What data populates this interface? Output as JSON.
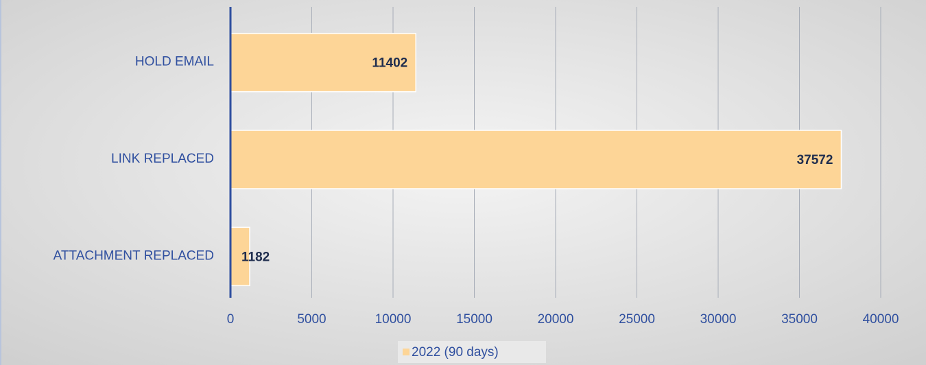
{
  "chart_data": {
    "type": "bar",
    "orientation": "horizontal",
    "categories": [
      "HOLD EMAIL",
      "LINK REPLACED",
      "ATTACHMENT REPLACED"
    ],
    "series": [
      {
        "name": "2022 (90 days)",
        "color": "#fdd597",
        "values": [
          11402,
          37572,
          1182
        ]
      }
    ],
    "xlim": [
      0,
      40000
    ],
    "xticks": [
      0,
      5000,
      10000,
      15000,
      20000,
      25000,
      30000,
      35000,
      40000
    ],
    "grid": true,
    "legend": "bottom"
  }
}
